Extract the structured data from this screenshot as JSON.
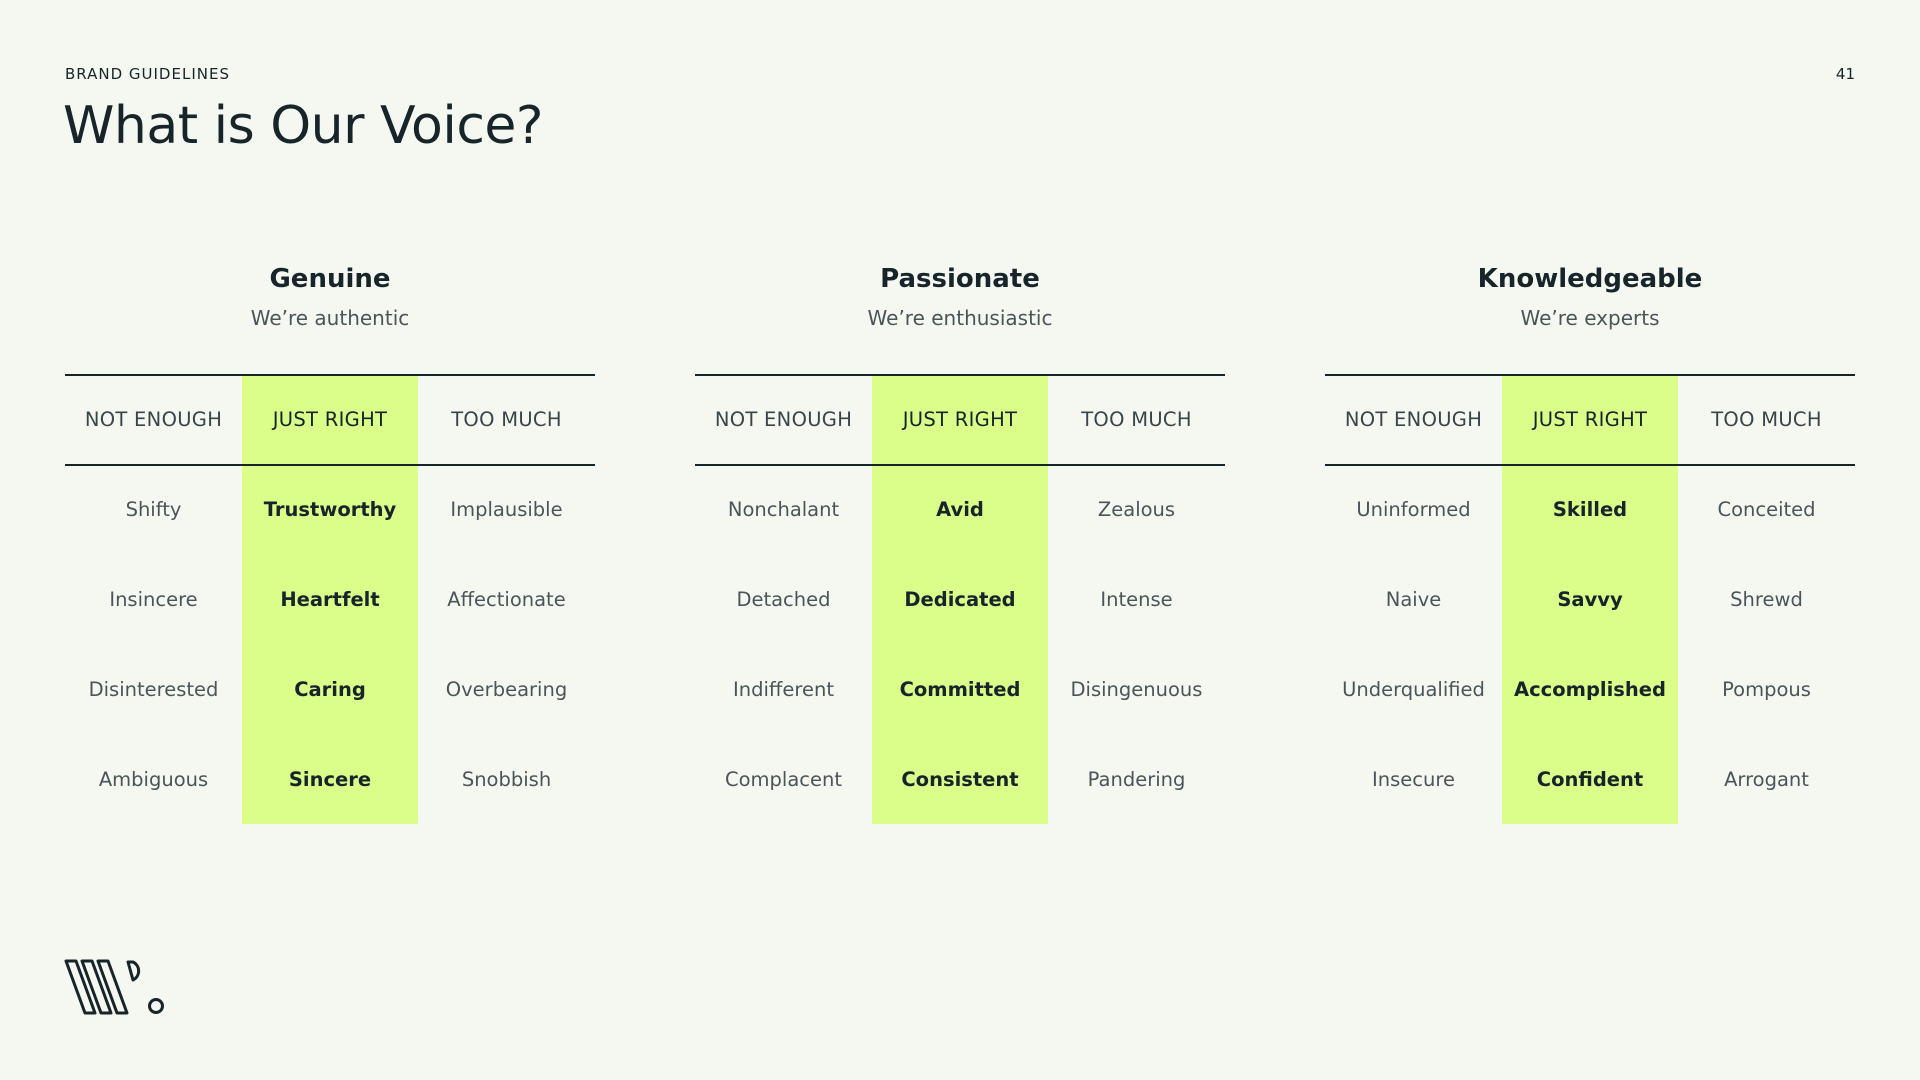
{
  "header": {
    "eyebrow": "BRAND GUIDELINES",
    "page_number": "41",
    "title": "What is Our Voice?"
  },
  "scale_labels": {
    "not_enough": "NOT ENOUGH",
    "just_right": "JUST RIGHT",
    "too_much": "TOO MUCH"
  },
  "columns": [
    {
      "heading": "Genuine",
      "subheading": "We’re authentic",
      "rows": [
        {
          "not_enough": "Shifty",
          "just_right": "Trustworthy",
          "too_much": "Implausible"
        },
        {
          "not_enough": "Insincere",
          "just_right": "Heartfelt",
          "too_much": "Affectionate"
        },
        {
          "not_enough": "Disinterested",
          "just_right": "Caring",
          "too_much": "Overbearing"
        },
        {
          "not_enough": "Ambiguous",
          "just_right": "Sincere",
          "too_much": "Snobbish"
        }
      ]
    },
    {
      "heading": "Passionate",
      "subheading": "We’re enthusiastic",
      "rows": [
        {
          "not_enough": "Nonchalant",
          "just_right": "Avid",
          "too_much": "Zealous"
        },
        {
          "not_enough": "Detached",
          "just_right": "Dedicated",
          "too_much": "Intense"
        },
        {
          "not_enough": "Indifferent",
          "just_right": "Committed",
          "too_much": "Disingenuous"
        },
        {
          "not_enough": "Complacent",
          "just_right": "Consistent",
          "too_much": "Pandering"
        }
      ]
    },
    {
      "heading": "Knowledgeable",
      "subheading": "We’re experts",
      "rows": [
        {
          "not_enough": "Uninformed",
          "just_right": "Skilled",
          "too_much": "Conceited"
        },
        {
          "not_enough": "Naive",
          "just_right": "Savvy",
          "too_much": "Shrewd"
        },
        {
          "not_enough": "Underqualified",
          "just_right": "Accomplished",
          "too_much": "Pompous"
        },
        {
          "not_enough": "Insecure",
          "just_right": "Confident",
          "too_much": "Arrogant"
        }
      ]
    }
  ],
  "colors": {
    "background": "#f5f8f0",
    "highlight": "#dbfd89",
    "text": "#17242a",
    "muted_text": "#4b5559"
  },
  "logo": {
    "icon": "brand-logo-mark"
  }
}
